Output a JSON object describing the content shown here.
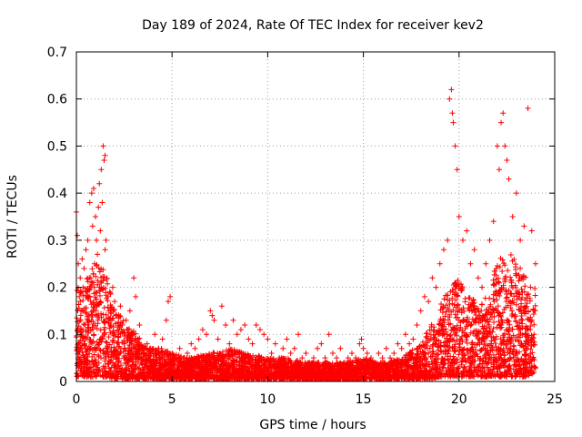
{
  "chart_data": {
    "type": "scatter",
    "title": "Day 189 of 2024, Rate Of TEC Index for receiver kev2",
    "xlabel": "GPS time / hours",
    "ylabel": "ROTI / TECUs",
    "xlim": [
      0,
      25
    ],
    "ylim": [
      0,
      0.7
    ],
    "xticks": [
      0,
      5,
      10,
      15,
      20,
      25
    ],
    "xtick_labels": [
      "0",
      "5",
      "10",
      "15",
      "20",
      "25"
    ],
    "yticks": [
      0,
      0.1,
      0.2,
      0.3,
      0.4,
      0.5,
      0.6,
      0.7
    ],
    "ytick_labels": [
      "0",
      "0.1",
      "0.2",
      "0.3",
      "0.4",
      "0.5",
      "0.6",
      "0.7"
    ],
    "grid": true,
    "marker": "+",
    "series": [
      {
        "color": "#ff0000",
        "x": [
          0.0,
          0.05,
          0.1,
          0.1,
          0.15,
          0.2,
          0.25,
          0.3,
          0.35,
          0.4,
          0.45,
          0.5,
          0.55,
          0.6,
          0.65,
          0.7,
          0.75,
          0.8,
          0.85,
          0.9,
          0.95,
          1.0,
          1.05,
          1.1,
          1.15,
          1.2,
          1.25,
          1.3,
          1.35,
          1.4,
          1.45,
          1.5,
          1.5,
          1.55,
          1.6,
          1.65,
          1.7,
          1.8,
          1.9,
          2.0,
          2.1,
          2.2,
          2.3,
          2.4,
          2.5,
          2.6,
          2.7,
          2.8,
          2.9,
          3.0,
          3.1,
          3.2,
          3.3,
          3.5,
          3.7,
          3.9,
          4.1,
          4.3,
          4.5,
          4.7,
          4.8,
          4.9,
          5.0,
          5.2,
          5.4,
          5.6,
          5.8,
          6.0,
          6.2,
          6.4,
          6.6,
          6.8,
          7.0,
          7.1,
          7.2,
          7.4,
          7.6,
          7.8,
          8.0,
          8.2,
          8.4,
          8.6,
          8.8,
          9.0,
          9.2,
          9.4,
          9.6,
          9.8,
          10.0,
          10.2,
          10.4,
          10.6,
          10.8,
          11.0,
          11.2,
          11.4,
          11.6,
          11.8,
          12.0,
          12.2,
          12.4,
          12.6,
          12.8,
          13.0,
          13.2,
          13.4,
          13.6,
          13.8,
          14.0,
          14.2,
          14.4,
          14.6,
          14.8,
          14.9,
          15.0,
          15.2,
          15.4,
          15.6,
          15.8,
          16.0,
          16.2,
          16.4,
          16.6,
          16.8,
          17.0,
          17.2,
          17.4,
          17.6,
          17.8,
          18.0,
          18.2,
          18.4,
          18.6,
          18.8,
          19.0,
          19.2,
          19.4,
          19.5,
          19.6,
          19.65,
          19.7,
          19.8,
          19.9,
          20.0,
          20.2,
          20.4,
          20.6,
          20.8,
          21.0,
          21.2,
          21.4,
          21.6,
          21.8,
          22.0,
          22.1,
          22.2,
          22.3,
          22.4,
          22.5,
          22.6,
          22.8,
          23.0,
          23.2,
          23.4,
          23.6,
          23.8,
          24.0
        ],
        "y": [
          0.36,
          0.31,
          0.25,
          0.08,
          0.18,
          0.22,
          0.15,
          0.26,
          0.2,
          0.24,
          0.12,
          0.28,
          0.19,
          0.3,
          0.14,
          0.38,
          0.22,
          0.4,
          0.33,
          0.41,
          0.25,
          0.35,
          0.3,
          0.27,
          0.37,
          0.42,
          0.32,
          0.45,
          0.38,
          0.5,
          0.47,
          0.48,
          0.28,
          0.3,
          0.22,
          0.18,
          0.15,
          0.12,
          0.2,
          0.17,
          0.14,
          0.1,
          0.16,
          0.12,
          0.08,
          0.13,
          0.11,
          0.15,
          0.1,
          0.22,
          0.18,
          0.09,
          0.12,
          0.07,
          0.08,
          0.06,
          0.1,
          0.07,
          0.09,
          0.13,
          0.17,
          0.18,
          0.06,
          0.05,
          0.07,
          0.05,
          0.06,
          0.08,
          0.07,
          0.09,
          0.11,
          0.1,
          0.15,
          0.14,
          0.13,
          0.09,
          0.16,
          0.12,
          0.08,
          0.13,
          0.1,
          0.11,
          0.12,
          0.09,
          0.08,
          0.12,
          0.11,
          0.1,
          0.09,
          0.06,
          0.08,
          0.05,
          0.07,
          0.09,
          0.06,
          0.07,
          0.1,
          0.05,
          0.06,
          0.04,
          0.05,
          0.07,
          0.08,
          0.05,
          0.1,
          0.06,
          0.05,
          0.07,
          0.04,
          0.05,
          0.06,
          0.05,
          0.08,
          0.09,
          0.07,
          0.06,
          0.05,
          0.04,
          0.06,
          0.05,
          0.07,
          0.05,
          0.06,
          0.08,
          0.07,
          0.1,
          0.08,
          0.09,
          0.12,
          0.15,
          0.18,
          0.17,
          0.22,
          0.2,
          0.25,
          0.28,
          0.3,
          0.6,
          0.62,
          0.57,
          0.55,
          0.5,
          0.45,
          0.35,
          0.3,
          0.32,
          0.25,
          0.28,
          0.22,
          0.2,
          0.25,
          0.3,
          0.34,
          0.5,
          0.45,
          0.55,
          0.57,
          0.5,
          0.47,
          0.43,
          0.35,
          0.4,
          0.3,
          0.33,
          0.58,
          0.32,
          0.25
        ]
      }
    ],
    "band": {
      "x": [
        0,
        0.5,
        1.0,
        1.5,
        2.0,
        2.5,
        3.0,
        3.5,
        4.0,
        4.5,
        5.0,
        6.0,
        7.0,
        8.0,
        9.0,
        10.0,
        11.0,
        12.0,
        13.0,
        14.0,
        15.0,
        16.0,
        17.0,
        18.0,
        18.5,
        19.0,
        19.5,
        20.0,
        20.5,
        21.0,
        21.5,
        22.0,
        22.5,
        23.0,
        23.5,
        24.0
      ],
      "low": [
        0.01,
        0.01,
        0.01,
        0.01,
        0.005,
        0.005,
        0.005,
        0.005,
        0.005,
        0.005,
        0.005,
        0.005,
        0.005,
        0.005,
        0.005,
        0.005,
        0.005,
        0.005,
        0.005,
        0.005,
        0.005,
        0.005,
        0.005,
        0.005,
        0.005,
        0.01,
        0.01,
        0.01,
        0.01,
        0.01,
        0.01,
        0.01,
        0.01,
        0.01,
        0.01,
        0.02
      ],
      "high": [
        0.2,
        0.22,
        0.25,
        0.24,
        0.16,
        0.13,
        0.11,
        0.08,
        0.07,
        0.07,
        0.06,
        0.05,
        0.06,
        0.07,
        0.06,
        0.05,
        0.05,
        0.04,
        0.04,
        0.04,
        0.05,
        0.04,
        0.05,
        0.08,
        0.12,
        0.16,
        0.2,
        0.22,
        0.18,
        0.17,
        0.18,
        0.26,
        0.28,
        0.26,
        0.22,
        0.2
      ]
    }
  }
}
